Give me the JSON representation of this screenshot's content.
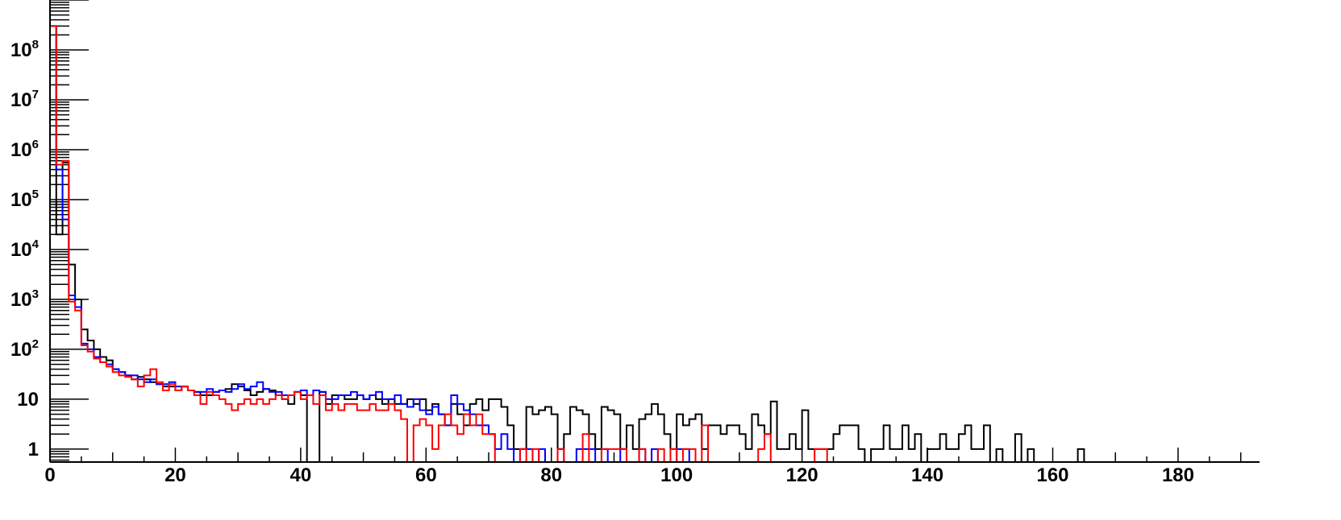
{
  "chart_data": {
    "type": "histogram",
    "title": "",
    "xlabel": "",
    "ylabel": "",
    "x_scale": "linear",
    "y_scale": "log",
    "xlim": [
      0,
      193
    ],
    "ylim": [
      0.55,
      1000000000
    ],
    "x_ticks": [
      0,
      20,
      40,
      60,
      80,
      100,
      120,
      140,
      160,
      180
    ],
    "y_ticks": [
      {
        "value": 1,
        "base": "1",
        "exp": ""
      },
      {
        "value": 10,
        "base": "10",
        "exp": ""
      },
      {
        "value": 100,
        "base": "10",
        "exp": "2"
      },
      {
        "value": 1000,
        "base": "10",
        "exp": "3"
      },
      {
        "value": 10000,
        "base": "10",
        "exp": "4"
      },
      {
        "value": 100000,
        "base": "10",
        "exp": "5"
      },
      {
        "value": 1000000,
        "base": "10",
        "exp": "6"
      },
      {
        "value": 10000000,
        "base": "10",
        "exp": "7"
      },
      {
        "value": 100000000,
        "base": "10",
        "exp": "8"
      }
    ],
    "bin_width": 1,
    "series": [
      {
        "color": "#000000",
        "values": [
          300000000,
          20000,
          550000,
          5000,
          1000,
          250,
          150,
          100,
          70,
          60,
          40,
          35,
          30,
          25,
          28,
          25,
          22,
          20,
          18,
          18,
          15,
          18,
          15,
          14,
          12,
          12,
          14,
          15,
          16,
          20,
          18,
          15,
          12,
          14,
          16,
          15,
          12,
          10,
          8,
          14,
          12,
          0,
          0,
          14,
          8,
          12,
          12,
          10,
          10,
          12,
          10,
          12,
          10,
          8,
          10,
          8,
          8,
          10,
          8,
          10,
          6,
          8,
          5,
          3,
          8,
          5,
          3,
          8,
          10,
          6,
          10,
          10,
          7,
          3,
          1,
          1,
          7,
          5,
          6,
          7,
          5,
          1,
          2,
          7,
          6,
          5,
          2,
          1,
          7,
          6,
          5,
          1,
          3,
          1,
          4,
          5,
          8,
          5,
          2,
          1,
          5,
          3,
          4,
          5,
          1,
          3,
          3,
          2,
          3,
          3,
          2,
          1,
          5,
          3,
          2,
          9,
          1,
          1,
          2,
          1,
          6,
          1,
          1,
          1,
          1,
          2,
          3,
          3,
          3,
          1,
          0,
          1,
          1,
          3,
          1,
          1,
          3,
          1,
          2,
          0.5,
          1,
          1,
          2,
          1,
          1,
          2,
          3,
          1,
          1,
          3,
          0.5,
          1,
          0.5,
          0.5,
          2,
          0.5,
          1,
          0.5,
          0.5,
          0.5,
          0.5,
          0.5,
          0.5,
          0.5,
          1,
          0.5,
          0.5,
          0.5,
          0.5,
          0.5,
          0.5,
          0.5,
          0.5,
          0.5,
          0.5,
          0.5,
          0.5,
          0.5,
          0.5,
          0.5,
          0.5,
          0.5,
          0.5,
          0.5,
          0.5,
          0.5,
          0.5,
          0.5,
          0.5,
          0.5,
          0.5,
          0.5,
          0.5
        ]
      },
      {
        "color": "#0000ff",
        "values": [
          300000000,
          400000,
          40000,
          1200,
          700,
          130,
          100,
          70,
          55,
          50,
          40,
          35,
          30,
          30,
          25,
          22,
          25,
          20,
          20,
          22,
          18,
          18,
          15,
          14,
          14,
          16,
          14,
          15,
          14,
          16,
          20,
          16,
          18,
          22,
          16,
          14,
          14,
          12,
          12,
          14,
          15,
          12,
          15,
          14,
          10,
          10,
          12,
          12,
          14,
          12,
          10,
          12,
          14,
          10,
          10,
          12,
          8,
          7,
          10,
          6,
          5,
          7,
          5,
          3,
          12,
          8,
          6,
          5,
          3,
          3,
          2,
          1,
          2,
          1,
          0.5,
          1,
          1,
          0.5,
          1,
          0.5,
          0.5,
          1,
          0.5,
          0.5,
          1,
          1,
          1,
          0.5,
          1,
          0.5,
          0.5,
          1,
          0.5,
          0.5,
          1,
          0.5,
          1,
          0.5,
          0.5,
          0.5,
          1,
          1,
          0.5,
          0.5,
          0.5,
          0.5,
          0.5,
          0.5,
          0.5,
          0.5,
          0.5,
          0.5,
          0.5,
          0.5,
          0.5,
          0.5,
          0.5,
          0.5,
          0.5,
          0.5,
          0.5,
          0.5,
          0.5,
          0.5,
          0.5,
          0.5,
          0.5,
          0.5,
          0.5,
          0.5,
          0.5,
          0.5,
          0.5,
          0.5,
          0.5,
          0.5,
          0.5,
          0.5,
          0.5,
          0.5,
          0.5,
          0.5,
          0.5,
          0.5,
          0.5,
          0.5,
          0.5,
          0.5,
          0.5,
          0.5,
          0.5,
          0.5,
          0.5,
          0.5,
          0.5,
          0.5,
          0.5,
          0.5,
          0.5,
          0.5,
          0.5,
          0.5,
          0.5,
          0.5,
          0.5,
          0.5,
          0.5,
          0.5,
          0.5,
          0.5,
          0.5,
          0.5,
          0.5,
          0.5,
          0.5,
          0.5,
          0.5,
          0.5,
          0.5,
          0.5,
          0.5,
          0.5,
          0.5,
          0.5,
          0.5,
          0.5,
          0.5,
          0.5,
          0.5
        ]
      },
      {
        "color": "#ff0000",
        "values": [
          300000000,
          500000,
          600000,
          900,
          600,
          120,
          90,
          65,
          55,
          45,
          35,
          30,
          28,
          25,
          18,
          30,
          40,
          22,
          15,
          20,
          15,
          18,
          15,
          12,
          8,
          14,
          12,
          10,
          8,
          6,
          8,
          10,
          8,
          10,
          8,
          10,
          12,
          10,
          12,
          14,
          10,
          12,
          8,
          12,
          6,
          8,
          6,
          8,
          8,
          6,
          6,
          8,
          6,
          6,
          8,
          6,
          4,
          0.5,
          3,
          4,
          3,
          1,
          3,
          5,
          3,
          2,
          5,
          3,
          5,
          2,
          2,
          0.5,
          0.5,
          0.5,
          0.5,
          1,
          0.5,
          1,
          0.5,
          0.5,
          0.5,
          1,
          0.5,
          0.5,
          0.5,
          2,
          0.5,
          0.5,
          1,
          1,
          1,
          1,
          0.5,
          0.5,
          1,
          0.5,
          0.5,
          1,
          0.5,
          1,
          0.5,
          1,
          1,
          0.5,
          3,
          0.5,
          0.5,
          0.5,
          0.5,
          0.5,
          0.5,
          0.5,
          0.5,
          1,
          2,
          0.5,
          0.5,
          0.5,
          0.5,
          0.5,
          0.5,
          0.5,
          1,
          1,
          0.5,
          0.5,
          0.5,
          0.5,
          0.5,
          0.5,
          0.5,
          0.5,
          0.5,
          0.5,
          0.5,
          0.5,
          0.5,
          0.5,
          0.5,
          0.5,
          0.5,
          0.5,
          0.5,
          0.5,
          0.5,
          0.5,
          0.5,
          0.5,
          0.5,
          0.5,
          0.5,
          0.5,
          0.5,
          0.5,
          0.5,
          0.5,
          0.5,
          0.5,
          0.5,
          0.5,
          0.5,
          0.5,
          0.5,
          0.5,
          0.5,
          0.5,
          0.5,
          0.5,
          0.5,
          0.5,
          0.5,
          0.5,
          0.5,
          0.5,
          0.5,
          0.5,
          0.5,
          0.5,
          0.5,
          0.5,
          0.5,
          0.5,
          0.5,
          0.5,
          0.5,
          0.5,
          0.5,
          0.5,
          0.5,
          0.5,
          0.5,
          0.5
        ]
      }
    ]
  }
}
